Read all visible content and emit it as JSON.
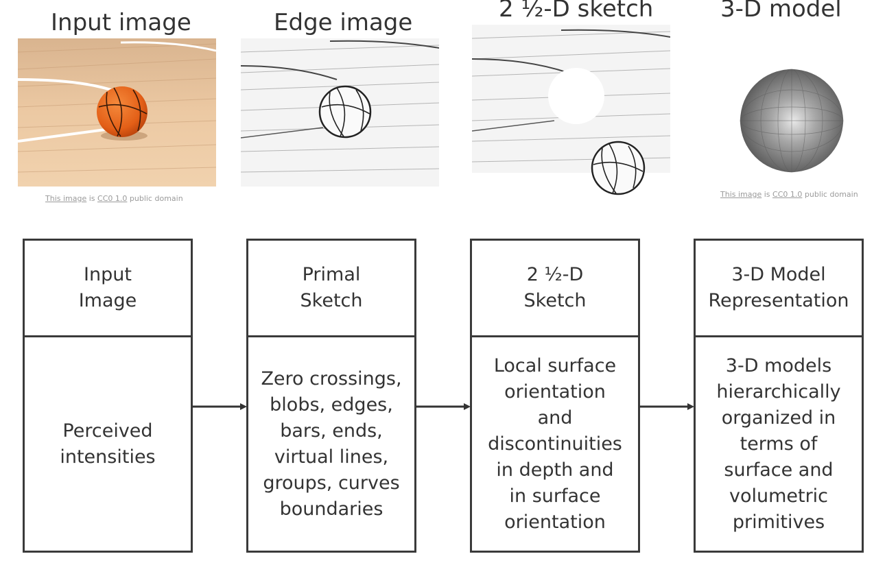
{
  "titles": {
    "input": "Input image",
    "edge": "Edge image",
    "sketch": "2 ½-D sketch",
    "model": "3-D model"
  },
  "credits": {
    "left": {
      "link1": "This image",
      "is": " is ",
      "link2": "CC0 1.0",
      "rest": " public domain"
    },
    "right": {
      "link1": "This image",
      "is": " is ",
      "link2": "CC0 1.0",
      "rest": " public domain"
    }
  },
  "stages": [
    {
      "head": "Input\nImage",
      "body": "Perceived\nintensities"
    },
    {
      "head": "Primal\nSketch",
      "body": "Zero crossings,\nblobs, edges,\nbars, ends,\nvirtual lines,\ngroups, curves\nboundaries"
    },
    {
      "head": "2 ½-D\nSketch",
      "body": "Local surface\norientation\nand\ndiscontinuities\nin depth and\nin surface\norientation"
    },
    {
      "head": "3-D Model\nRepresentation",
      "body": "3-D models\nhierarchically\norganized in\nterms of\nsurface and\nvolumetric\nprimitives"
    }
  ],
  "colors": {
    "ball": "#e8661e",
    "floor": "#e9c39b",
    "box_border": "#3a3a3a"
  }
}
